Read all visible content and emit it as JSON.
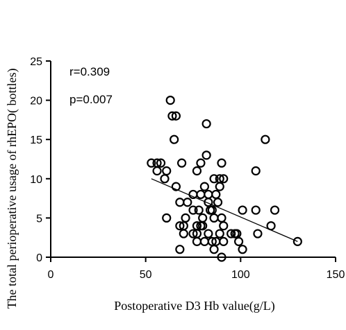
{
  "chart_data": {
    "type": "scatter",
    "xlabel": "Postoperative D3 Hb value(g/L)",
    "ylabel": "The total perioperative usage of rhEPO( bottles)",
    "xlim": [
      0,
      150
    ],
    "ylim": [
      0,
      25
    ],
    "xticks": [
      "0",
      "50",
      "100",
      "150"
    ],
    "yticks": [
      "0",
      "5",
      "10",
      "15",
      "20",
      "25"
    ],
    "annotations": [
      "r=0.309",
      "p=0.007"
    ],
    "grid": false,
    "marker": "open-circle",
    "trendline": {
      "x": [
        53,
        130
      ],
      "y": [
        10,
        2
      ]
    },
    "points": [
      [
        63,
        20
      ],
      [
        64,
        18
      ],
      [
        66,
        18
      ],
      [
        82,
        17
      ],
      [
        65,
        15
      ],
      [
        113,
        15
      ],
      [
        82,
        13
      ],
      [
        53,
        12
      ],
      [
        56,
        12
      ],
      [
        58,
        12
      ],
      [
        69,
        12
      ],
      [
        79,
        12
      ],
      [
        90,
        12
      ],
      [
        56,
        11
      ],
      [
        61,
        11
      ],
      [
        77,
        11
      ],
      [
        108,
        11
      ],
      [
        60,
        10
      ],
      [
        86,
        10
      ],
      [
        89,
        10
      ],
      [
        91,
        10
      ],
      [
        66,
        9
      ],
      [
        81,
        9
      ],
      [
        89,
        9
      ],
      [
        75,
        8
      ],
      [
        79,
        8
      ],
      [
        83,
        8
      ],
      [
        87,
        8
      ],
      [
        68,
        7
      ],
      [
        72,
        7
      ],
      [
        83,
        7
      ],
      [
        88,
        7
      ],
      [
        75,
        6
      ],
      [
        78,
        6
      ],
      [
        84,
        6
      ],
      [
        85,
        6
      ],
      [
        101,
        6
      ],
      [
        108,
        6
      ],
      [
        118,
        6
      ],
      [
        61,
        5
      ],
      [
        71,
        5
      ],
      [
        80,
        5
      ],
      [
        86,
        5
      ],
      [
        90,
        5
      ],
      [
        68,
        4
      ],
      [
        70,
        4
      ],
      [
        77,
        4
      ],
      [
        79,
        4
      ],
      [
        80,
        4
      ],
      [
        91,
        4
      ],
      [
        116,
        4
      ],
      [
        70,
        3
      ],
      [
        75,
        3
      ],
      [
        77,
        3
      ],
      [
        83,
        3
      ],
      [
        89,
        3
      ],
      [
        95,
        3
      ],
      [
        97,
        3
      ],
      [
        98,
        3
      ],
      [
        109,
        3
      ],
      [
        77,
        2
      ],
      [
        81,
        2
      ],
      [
        85,
        2
      ],
      [
        87,
        2
      ],
      [
        91,
        2
      ],
      [
        99,
        2
      ],
      [
        130,
        2
      ],
      [
        68,
        1
      ],
      [
        86,
        1
      ],
      [
        101,
        1
      ],
      [
        90,
        0
      ]
    ]
  }
}
